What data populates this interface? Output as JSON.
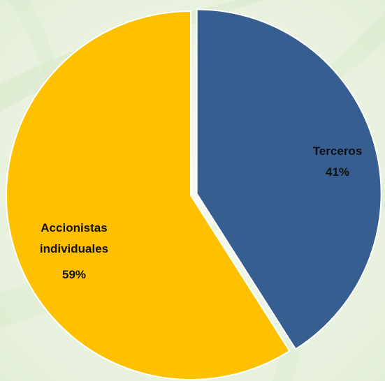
{
  "chart_data": {
    "type": "pie",
    "title": "",
    "categories": [
      "Terceros",
      "Accionistas individuales"
    ],
    "values": [
      41,
      59
    ],
    "value_labels": [
      "41%",
      "59%"
    ],
    "colors": [
      "#375E90",
      "#FFC000"
    ],
    "legend": "none",
    "start": "top, clockwise, first slice exploded"
  }
}
